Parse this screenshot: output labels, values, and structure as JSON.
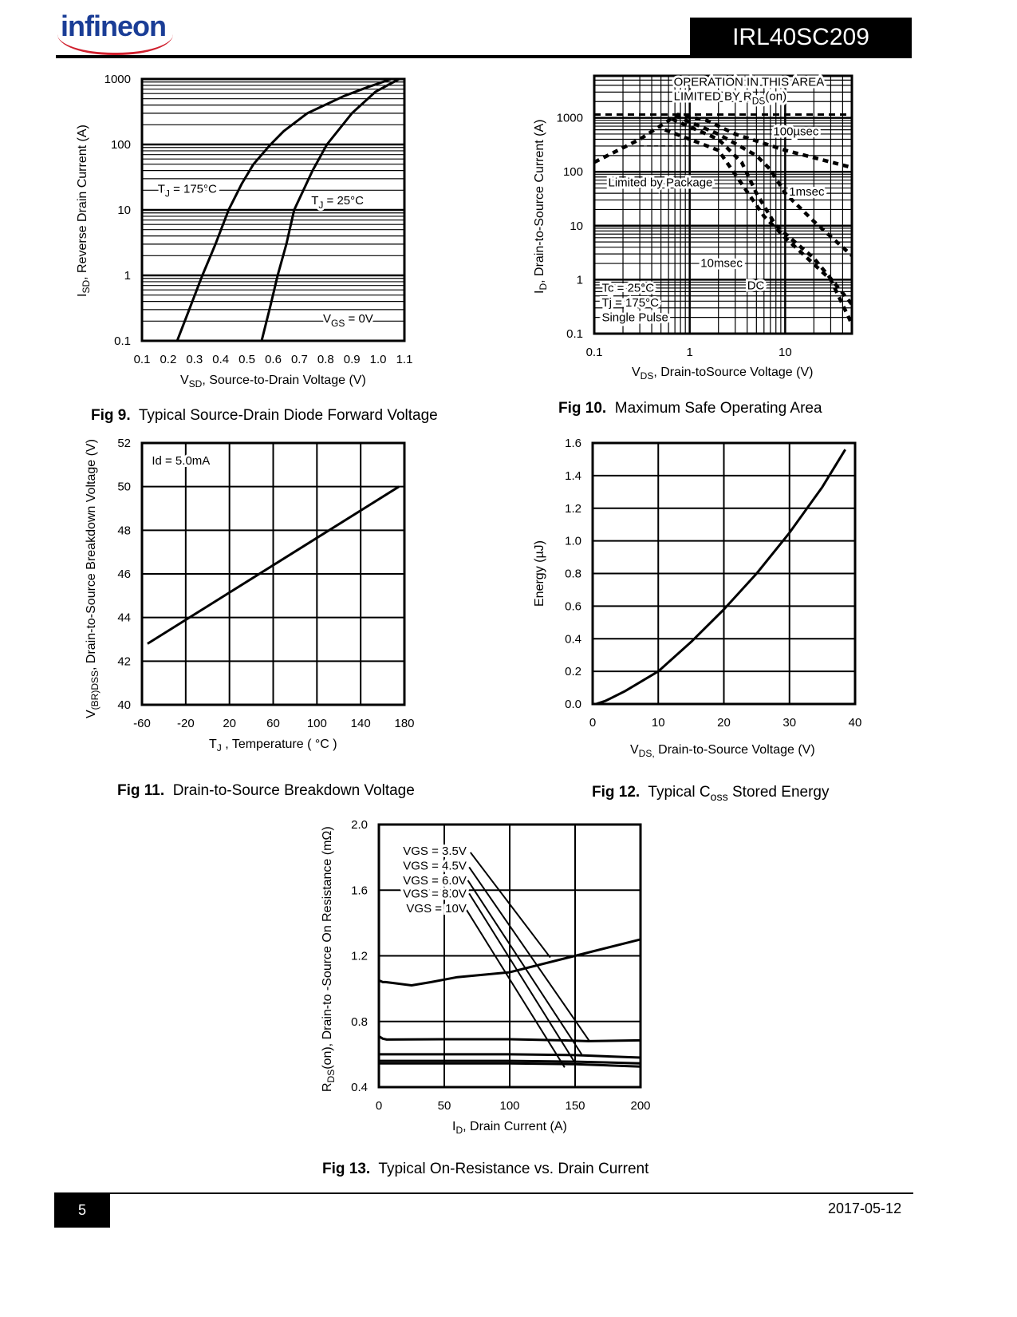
{
  "header": {
    "brand": "infineon",
    "part_number": "IRL40SC209"
  },
  "footer": {
    "page": "5",
    "date": "2017-05-12"
  },
  "colors": {
    "brand_blue": "#1a3d96",
    "brand_red": "#d0202e",
    "ink": "#000000"
  },
  "chart_data": [
    {
      "id": "fig9",
      "type": "line",
      "caption_num": "Fig 9.",
      "title": "Typical Source-Drain Diode Forward Voltage",
      "xlabel": {
        "main": "V",
        "sub": "SD",
        "rest": ", Source-to-Drain Voltage (V)"
      },
      "ylabel": {
        "main": "I",
        "sub": "SD",
        "rest": ", Reverse Drain Current (A)"
      },
      "x_scale": "linear",
      "y_scale": "log",
      "xlim": [
        0.1,
        1.1
      ],
      "ylim": [
        0.1,
        1000
      ],
      "grid": "y",
      "x_ticks": {
        "values": [
          0.1,
          0.2,
          0.3,
          0.4,
          0.5,
          0.6,
          0.7,
          0.8,
          0.9,
          1.0,
          1.1
        ],
        "labels": [
          "0.1",
          "0.2",
          "0.3",
          "0.4",
          "0.5",
          "0.6",
          "0.7",
          "0.8",
          "0.9",
          "1.0",
          "1.1"
        ]
      },
      "y_ticks": {
        "values": [
          0.1,
          1,
          10,
          100,
          1000
        ],
        "labels": [
          "0.1",
          "1",
          "10",
          "100",
          "1000"
        ]
      },
      "series": [
        {
          "name": "TJ = 175°C",
          "style": "solid",
          "x": [
            0.234,
            0.28,
            0.33,
            0.38,
            0.43,
            0.48,
            0.525,
            0.59,
            0.64,
            0.73,
            0.87,
            0.96,
            1.05
          ],
          "y": [
            0.1,
            0.3,
            1,
            3,
            10,
            25,
            50,
            100,
            160,
            300,
            550,
            750,
            1000
          ]
        },
        {
          "name": "TJ = 25°C",
          "style": "solid",
          "x": [
            0.556,
            0.59,
            0.617,
            0.65,
            0.68,
            0.75,
            0.805,
            0.9,
            0.99,
            1.08
          ],
          "y": [
            0.1,
            0.35,
            1,
            3,
            10,
            40,
            100,
            300,
            640,
            1000
          ]
        }
      ],
      "annotations": [
        {
          "main": "T",
          "sub": "J",
          "rest": " = 175°C",
          "x": 0.16,
          "y": 21
        },
        {
          "main": "T",
          "sub": "J",
          "rest": " = 25°C",
          "x": 0.745,
          "y": 14
        },
        {
          "main": "V",
          "sub": "GS",
          "rest": " = 0V",
          "x": 0.79,
          "y": 0.22
        }
      ]
    },
    {
      "id": "fig10",
      "type": "line",
      "caption_num": "Fig 10.",
      "title": "Maximum Safe Operating Area",
      "xlabel": {
        "main": "V",
        "sub": "DS",
        "rest": ", Drain-toSource Voltage (V)"
      },
      "ylabel": {
        "main": "I",
        "sub": "D",
        "rest": ",  Drain-to-Source Current (A)"
      },
      "x_scale": "log",
      "y_scale": "log",
      "xlim": [
        0.1,
        50
      ],
      "ylim": [
        0.1,
        6000
      ],
      "grid": "both",
      "x_ticks": {
        "values": [
          0.1,
          1,
          10
        ],
        "labels": [
          "0.1",
          "1",
          "10"
        ]
      },
      "y_ticks": {
        "values": [
          0.1,
          1,
          10,
          100,
          1000
        ],
        "labels": [
          "0.1",
          "1",
          "10",
          "100",
          "1000"
        ]
      },
      "series": [
        {
          "name": "RDS(on) limit",
          "style": "dash",
          "x": [
            0.1,
            50
          ],
          "y": [
            1150,
            1150
          ]
        },
        {
          "name": "Package limit",
          "style": "thin-dash",
          "x": [
            0.3,
            1.0
          ],
          "y": [
            300,
            300
          ]
        },
        {
          "name": "100µsec",
          "style": "heavy-dash",
          "x": [
            0.1,
            0.3,
            0.75,
            1.5,
            3,
            10,
            50
          ],
          "y": [
            150,
            400,
            1150,
            900,
            500,
            250,
            120
          ]
        },
        {
          "name": "1msec",
          "style": "heavy-dash",
          "x": [
            0.7,
            2,
            5,
            7,
            10,
            20,
            50
          ],
          "y": [
            1100,
            500,
            200,
            110,
            40,
            12,
            2.8
          ]
        },
        {
          "name": "10msec",
          "style": "heavy-dash",
          "x": [
            0.65,
            2,
            3.5,
            5,
            8,
            20,
            50
          ],
          "y": [
            950,
            400,
            150,
            40,
            10,
            2.5,
            0.35
          ]
        },
        {
          "name": "DC",
          "style": "heavy-dash",
          "x": [
            0.55,
            1,
            2,
            3.5,
            6,
            10,
            30,
            50
          ],
          "y": [
            600,
            400,
            250,
            60,
            15,
            6,
            1,
            0.15
          ]
        }
      ],
      "annotations": [
        {
          "main": "OPERATION IN THIS AREA",
          "x": 0.68,
          "y": 4640
        },
        {
          "main": "LIMITED BY R",
          "sub": "DS",
          "rest": "(on)",
          "x": 0.68,
          "y": 2510
        },
        {
          "main": "100µsec",
          "x": 7.5,
          "y": 560
        },
        {
          "main": "1msec",
          "x": 11,
          "y": 43
        },
        {
          "main": "10msec",
          "x": 1.3,
          "y": 2.05
        },
        {
          "main": "DC",
          "x": 4.0,
          "y": 0.79
        },
        {
          "main": "Limited by Package",
          "x": 0.14,
          "y": 64
        },
        {
          "main": "Tc = 25°C",
          "x": 0.12,
          "y": 0.71
        },
        {
          "main": "Tj = 175°C",
          "x": 0.12,
          "y": 0.38
        },
        {
          "main": "Single Pulse",
          "x": 0.12,
          "y": 0.2
        }
      ]
    },
    {
      "id": "fig11",
      "type": "line",
      "caption_num": "Fig 11.",
      "title": "Drain-to-Source Breakdown Voltage",
      "xlabel": {
        "main": "T",
        "sub": "J",
        "rest": " , Temperature ( °C )"
      },
      "ylabel": {
        "main": "V",
        "sub": "(BR)DSS",
        "rest": ", Drain-to-Source Breakdown Voltage (V)"
      },
      "x_scale": "linear",
      "y_scale": "linear",
      "xlim": [
        -60,
        180
      ],
      "ylim": [
        40,
        52
      ],
      "grid": "both",
      "x_ticks": {
        "values": [
          -60,
          -20,
          20,
          60,
          100,
          140,
          180
        ],
        "labels": [
          "-60",
          "-20",
          "20",
          "60",
          "100",
          "140",
          "180"
        ]
      },
      "y_ticks": {
        "values": [
          40,
          42,
          44,
          46,
          48,
          50,
          52
        ],
        "labels": [
          "40",
          "42",
          "44",
          "46",
          "48",
          "50",
          "52"
        ]
      },
      "series": [
        {
          "name": "Id = 5.0mA",
          "style": "solid",
          "x": [
            -55,
            175
          ],
          "y": [
            42.8,
            50.0
          ]
        }
      ],
      "annotations": [
        {
          "main": "Id = 5.0mA",
          "x": -51,
          "y": 51.2
        }
      ]
    },
    {
      "id": "fig12",
      "type": "line",
      "caption_num": "Fig 12.",
      "title": {
        "main": "Typical C",
        "sub": "oss",
        "rest": " Stored Energy"
      },
      "xlabel": {
        "main": "V",
        "sub": "DS,",
        "rest": " Drain-to-Source Voltage (V)"
      },
      "ylabel": {
        "main": "Energy (µJ)"
      },
      "x_scale": "linear",
      "y_scale": "linear",
      "xlim": [
        0,
        40
      ],
      "ylim": [
        0,
        1.6
      ],
      "grid": "both",
      "x_ticks": {
        "values": [
          0,
          10,
          20,
          30,
          40
        ],
        "labels": [
          "0",
          "10",
          "20",
          "30",
          "40"
        ]
      },
      "y_ticks": {
        "values": [
          0,
          0.2,
          0.4,
          0.6,
          0.8,
          1.0,
          1.2,
          1.4,
          1.6
        ],
        "labels": [
          "0.0",
          "0.2",
          "0.4",
          "0.6",
          "0.8",
          "1.0",
          "1.2",
          "1.4",
          "1.6"
        ]
      },
      "series": [
        {
          "name": "Eoss",
          "style": "solid",
          "x": [
            0.5,
            2,
            5,
            10,
            15,
            20,
            25,
            30,
            35,
            38.5
          ],
          "y": [
            0,
            0.02,
            0.08,
            0.2,
            0.38,
            0.58,
            0.8,
            1.05,
            1.33,
            1.56
          ]
        }
      ],
      "annotations": []
    },
    {
      "id": "fig13",
      "type": "line",
      "caption_num": "Fig 13.",
      "title": "Typical On-Resistance vs. Drain Current",
      "xlabel": {
        "main": "I",
        "sub": "D",
        "rest": ", Drain Current (A)"
      },
      "ylabel": {
        "main": "R",
        "sub": "DS",
        "rest": "(on),  Drain-to -Source On Resistance (mΩ)"
      },
      "x_scale": "linear",
      "y_scale": "linear",
      "xlim": [
        0,
        200
      ],
      "ylim": [
        0.4,
        2.0
      ],
      "grid": "both",
      "x_ticks": {
        "values": [
          0,
          50,
          100,
          150,
          200
        ],
        "labels": [
          "0",
          "50",
          "100",
          "150",
          "200"
        ]
      },
      "y_ticks": {
        "values": [
          0.4,
          0.8,
          1.2,
          1.6,
          2.0
        ],
        "labels": [
          "0.4",
          "0.8",
          "1.2",
          "1.6",
          "2.0"
        ]
      },
      "series": [
        {
          "name": "VGS = 3.5V",
          "style": "solid",
          "x": [
            0,
            3,
            5,
            10,
            25,
            40,
            60,
            100,
            150,
            200
          ],
          "y": [
            1.05,
            1.04,
            1.04,
            1.035,
            1.02,
            1.04,
            1.07,
            1.1,
            1.2,
            1.3
          ]
        },
        {
          "name": "VGS = 4.5V",
          "style": "solid",
          "x": [
            0,
            3,
            6,
            50,
            100,
            140,
            160,
            200
          ],
          "y": [
            0.71,
            0.695,
            0.69,
            0.692,
            0.692,
            0.685,
            0.68,
            0.685
          ]
        },
        {
          "name": "VGS = 6.0V",
          "style": "solid",
          "x": [
            0,
            50,
            100,
            150,
            200
          ],
          "y": [
            0.6,
            0.6,
            0.6,
            0.595,
            0.58
          ]
        },
        {
          "name": "VGS = 8.0V",
          "style": "solid",
          "x": [
            0,
            50,
            100,
            150,
            200
          ],
          "y": [
            0.56,
            0.56,
            0.56,
            0.555,
            0.545
          ]
        },
        {
          "name": "VGS = 10V",
          "style": "solid",
          "x": [
            0,
            50,
            100,
            150,
            200
          ],
          "y": [
            0.545,
            0.545,
            0.545,
            0.54,
            0.525
          ]
        }
      ],
      "annotations": [
        {
          "main": "VGS = 3.5V",
          "x": 67,
          "y": 1.84,
          "anchor": "end",
          "pointer": [
            70,
            1.83,
            131,
            1.19
          ]
        },
        {
          "main": "VGS = 4.5V",
          "x": 67,
          "y": 1.75,
          "anchor": "end",
          "pointer": [
            69,
            1.74,
            161,
            0.68
          ]
        },
        {
          "main": "VGS = 6.0V",
          "x": 67,
          "y": 1.66,
          "anchor": "end",
          "pointer": [
            68,
            1.66,
            155,
            0.6
          ]
        },
        {
          "main": "VGS = 8.0V",
          "x": 67,
          "y": 1.58,
          "anchor": "end",
          "pointer": [
            69,
            1.58,
            149,
            0.56
          ]
        },
        {
          "main": "VGS = 10V",
          "x": 67,
          "y": 1.49,
          "anchor": "end",
          "pointer": [
            67,
            1.48,
            142,
            0.52
          ]
        }
      ]
    }
  ]
}
